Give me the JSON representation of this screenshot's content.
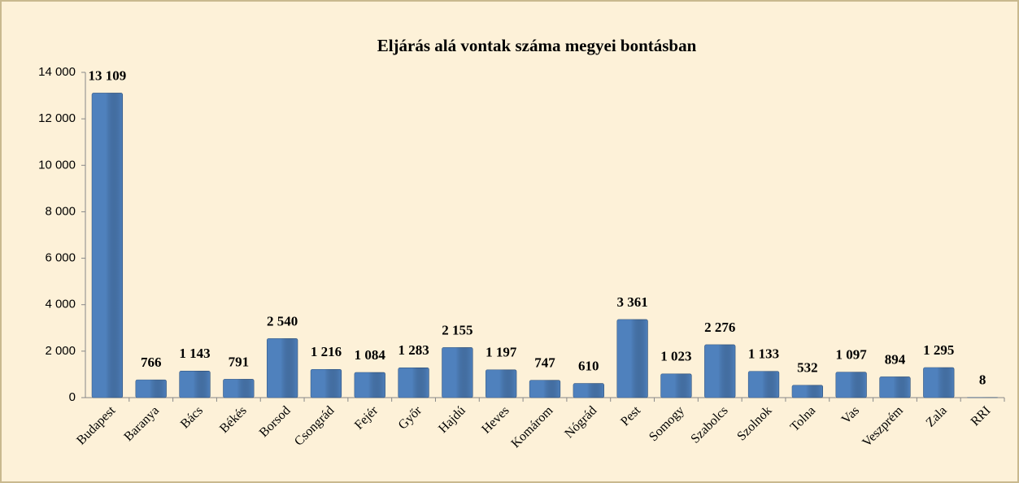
{
  "chart_data": {
    "type": "bar",
    "title": "Eljárás alá vontak száma megyei bontásban",
    "categories": [
      "Budapest",
      "Baranya",
      "Bács",
      "Békés",
      "Borsod",
      "Csongrád",
      "Fejér",
      "Győr",
      "Hajdú",
      "Heves",
      "Komárom",
      "Nógrád",
      "Pest",
      "Somogy",
      "Szabolcs",
      "Szolnok",
      "Tolna",
      "Vas",
      "Veszprém",
      "Zala",
      "RRI"
    ],
    "values": [
      13109,
      766,
      1143,
      791,
      2540,
      1216,
      1084,
      1283,
      2155,
      1197,
      747,
      610,
      3361,
      1023,
      2276,
      1133,
      532,
      1097,
      894,
      1295,
      8
    ],
    "value_labels": [
      "13 109",
      "766",
      "1 143",
      "791",
      "2 540",
      "1 216",
      "1 084",
      "1 283",
      "2 155",
      "1 197",
      "747",
      "610",
      "3 361",
      "1 023",
      "2 276",
      "1 133",
      "532",
      "1 097",
      "894",
      "1 295",
      "8"
    ],
    "color": "#4f81bd",
    "ylim": [
      0,
      14000
    ],
    "yticks": [
      0,
      {
        "value": 2000,
        "label": "2 000"
      },
      {
        "value": 4000,
        "label": "4 000"
      },
      {
        "value": 6000,
        "label": "6 000"
      },
      {
        "value": 8000,
        "label": "8 000"
      },
      {
        "value": 10000,
        "label": "10 000"
      },
      {
        "value": 12000,
        "label": "12 000"
      },
      {
        "value": 14000,
        "label": "14 000"
      }
    ],
    "grid": false
  }
}
